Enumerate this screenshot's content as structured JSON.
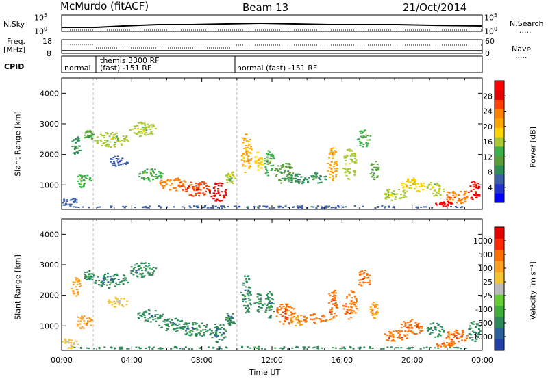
{
  "header": {
    "station": "McMurdo (fitACF)",
    "beam": "Beam 13",
    "date": "21/Oct/2014"
  },
  "side_labels": {
    "nsky": "N.Sky",
    "freq": "Freq.",
    "freq_unit": "[MHz]",
    "cpid": "CPID",
    "nsearch": "N.Search",
    "nave": "Nave",
    "dots": "....."
  },
  "noise_panel": {
    "left_ticks": [
      "10^5",
      "10^0"
    ],
    "right_ticks": [
      "10^5",
      "10^0"
    ]
  },
  "freq_panel": {
    "left_ticks": [
      "18",
      "8"
    ],
    "right_ticks": [
      "60",
      "0"
    ]
  },
  "cpid_panel": {
    "segments": [
      {
        "label": "normal",
        "start": 0.0
      },
      {
        "label": "themis 3300 RF",
        "label2": "(fast) -151 RF",
        "start": 1.8
      },
      {
        "label": "normal (fast) -151 RF",
        "start": 10.0
      }
    ]
  },
  "colors": {
    "white_bg": "#ffffff",
    "grid": "#bbbbbb"
  },
  "chart_data": [
    {
      "type": "heatmap",
      "panel": "power",
      "ylabel": "Slant Range [km]",
      "yticks": [
        "4000",
        "3000",
        "2000",
        "1000"
      ],
      "ylim": [
        200,
        4500
      ],
      "xlim": [
        0,
        24
      ],
      "colorbar_label": "Power [dB]",
      "colorbar_ticks": [
        "28",
        "24",
        "20",
        "16",
        "12",
        "8",
        "4"
      ],
      "colorbar_colors": [
        "#0000ff",
        "#2233cc",
        "#3a5ea8",
        "#2f8f5a",
        "#5a9e3c",
        "#3cb04a",
        "#a8c832",
        "#ffd400",
        "#ffa500",
        "#ff7f00",
        "#ff4000",
        "#e60000",
        "#ff0000"
      ],
      "blobs": [
        {
          "x": 0.4,
          "y": 450,
          "w": 1.0,
          "h": 350,
          "level": 2
        },
        {
          "x": 0.8,
          "y": 2300,
          "w": 0.6,
          "h": 600,
          "level": 3
        },
        {
          "x": 1.2,
          "y": 1150,
          "w": 1.0,
          "h": 450,
          "level": 5
        },
        {
          "x": 1.5,
          "y": 2650,
          "w": 0.6,
          "h": 350,
          "level": 4
        },
        {
          "x": 2.8,
          "y": 2500,
          "w": 2.0,
          "h": 500,
          "level": 6
        },
        {
          "x": 4.6,
          "y": 2850,
          "w": 1.5,
          "h": 500,
          "level": 6
        },
        {
          "x": 3.2,
          "y": 1800,
          "w": 1.2,
          "h": 350,
          "level": 2
        },
        {
          "x": 5.0,
          "y": 1350,
          "w": 1.5,
          "h": 400,
          "level": 5
        },
        {
          "x": 6.3,
          "y": 1050,
          "w": 1.6,
          "h": 450,
          "level": 9
        },
        {
          "x": 7.6,
          "y": 900,
          "w": 1.8,
          "h": 500,
          "level": 10
        },
        {
          "x": 8.9,
          "y": 800,
          "w": 1.0,
          "h": 650,
          "level": 11
        },
        {
          "x": 9.6,
          "y": 1250,
          "w": 0.6,
          "h": 450,
          "level": 6
        },
        {
          "x": 10.5,
          "y": 2050,
          "w": 0.6,
          "h": 1300,
          "level": 8
        },
        {
          "x": 11.2,
          "y": 1800,
          "w": 0.5,
          "h": 700,
          "level": 7
        },
        {
          "x": 11.8,
          "y": 1700,
          "w": 0.6,
          "h": 900,
          "level": 5
        },
        {
          "x": 12.7,
          "y": 1400,
          "w": 1.2,
          "h": 700,
          "level": 4
        },
        {
          "x": 13.4,
          "y": 1200,
          "w": 1.0,
          "h": 350,
          "level": 3
        },
        {
          "x": 14.4,
          "y": 1250,
          "w": 1.4,
          "h": 350,
          "level": 3
        },
        {
          "x": 15.4,
          "y": 1700,
          "w": 0.6,
          "h": 1100,
          "level": 8
        },
        {
          "x": 16.4,
          "y": 1700,
          "w": 0.8,
          "h": 1000,
          "level": 6
        },
        {
          "x": 17.2,
          "y": 2550,
          "w": 0.8,
          "h": 600,
          "level": 5
        },
        {
          "x": 17.8,
          "y": 1500,
          "w": 0.5,
          "h": 600,
          "level": 4
        },
        {
          "x": 19.0,
          "y": 700,
          "w": 1.5,
          "h": 400,
          "level": 6
        },
        {
          "x": 20.0,
          "y": 1000,
          "w": 1.4,
          "h": 500,
          "level": 7
        },
        {
          "x": 21.3,
          "y": 900,
          "w": 1.0,
          "h": 500,
          "level": 6
        },
        {
          "x": 22.5,
          "y": 650,
          "w": 1.4,
          "h": 500,
          "level": 9
        },
        {
          "x": 23.5,
          "y": 850,
          "w": 0.7,
          "h": 700,
          "level": 11
        },
        {
          "x": 21.8,
          "y": 400,
          "w": 1.0,
          "h": 150,
          "level": 12
        },
        {
          "x": 12.0,
          "y": 300,
          "w": 24.0,
          "h": 80,
          "level": 2
        }
      ]
    },
    {
      "type": "heatmap",
      "panel": "velocity",
      "ylabel": "Slant Range [km]",
      "yticks": [
        "4000",
        "3000",
        "2000",
        "1000"
      ],
      "ylim": [
        200,
        4500
      ],
      "xlim": [
        0,
        24
      ],
      "xticks": [
        "00:00",
        "04:00",
        "08:00",
        "12:00",
        "16:00",
        "20:00",
        "00:00"
      ],
      "xlabel": "Time UT",
      "colorbar_label": "Velocity [m s⁻¹]",
      "colorbar_ticks": [
        "1000",
        "500",
        "100",
        "25",
        "-25",
        "-100",
        "-500",
        "-1000"
      ],
      "colorbar_colors": [
        "#1f3ea8",
        "#2a5f9c",
        "#2f8a5a",
        "#3fae3a",
        "#66cc33",
        "#bbbbbb",
        "#f4c430",
        "#ffa020",
        "#ff7000",
        "#ff2a00",
        "#e60000"
      ],
      "blobs": [
        {
          "x": 0.4,
          "y": 450,
          "w": 1.0,
          "h": 350,
          "level": 6
        },
        {
          "x": 0.8,
          "y": 2300,
          "w": 0.6,
          "h": 600,
          "level": 7
        },
        {
          "x": 1.2,
          "y": 1150,
          "w": 1.0,
          "h": 450,
          "level": 7
        },
        {
          "x": 1.5,
          "y": 2650,
          "w": 0.6,
          "h": 350,
          "level": 2
        },
        {
          "x": 2.8,
          "y": 2500,
          "w": 2.0,
          "h": 500,
          "level": 2
        },
        {
          "x": 4.6,
          "y": 2850,
          "w": 1.5,
          "h": 500,
          "level": 2
        },
        {
          "x": 3.2,
          "y": 1800,
          "w": 1.2,
          "h": 350,
          "level": 6
        },
        {
          "x": 5.0,
          "y": 1350,
          "w": 1.5,
          "h": 400,
          "level": 2
        },
        {
          "x": 6.3,
          "y": 1050,
          "w": 1.6,
          "h": 450,
          "level": 2
        },
        {
          "x": 7.6,
          "y": 900,
          "w": 1.8,
          "h": 500,
          "level": 2
        },
        {
          "x": 8.9,
          "y": 800,
          "w": 1.0,
          "h": 650,
          "level": 2
        },
        {
          "x": 9.6,
          "y": 1250,
          "w": 0.6,
          "h": 450,
          "level": 2
        },
        {
          "x": 10.5,
          "y": 2050,
          "w": 0.6,
          "h": 1300,
          "level": 2
        },
        {
          "x": 11.2,
          "y": 1800,
          "w": 0.5,
          "h": 700,
          "level": 2
        },
        {
          "x": 11.8,
          "y": 1700,
          "w": 0.6,
          "h": 900,
          "level": 2
        },
        {
          "x": 12.7,
          "y": 1400,
          "w": 1.2,
          "h": 700,
          "level": 8
        },
        {
          "x": 13.4,
          "y": 1200,
          "w": 1.0,
          "h": 350,
          "level": 7
        },
        {
          "x": 14.4,
          "y": 1250,
          "w": 1.4,
          "h": 350,
          "level": 8
        },
        {
          "x": 15.4,
          "y": 1700,
          "w": 0.6,
          "h": 1100,
          "level": 8
        },
        {
          "x": 16.4,
          "y": 1700,
          "w": 0.8,
          "h": 1000,
          "level": 8
        },
        {
          "x": 17.2,
          "y": 2550,
          "w": 0.8,
          "h": 600,
          "level": 8
        },
        {
          "x": 17.8,
          "y": 1500,
          "w": 0.5,
          "h": 600,
          "level": 7
        },
        {
          "x": 19.0,
          "y": 700,
          "w": 1.5,
          "h": 400,
          "level": 8
        },
        {
          "x": 20.0,
          "y": 1000,
          "w": 1.4,
          "h": 500,
          "level": 8
        },
        {
          "x": 21.3,
          "y": 900,
          "w": 1.0,
          "h": 500,
          "level": 2
        },
        {
          "x": 22.5,
          "y": 650,
          "w": 1.4,
          "h": 500,
          "level": 8
        },
        {
          "x": 23.5,
          "y": 850,
          "w": 0.7,
          "h": 700,
          "level": 2
        },
        {
          "x": 21.8,
          "y": 400,
          "w": 1.0,
          "h": 150,
          "level": 8
        },
        {
          "x": 12.0,
          "y": 300,
          "w": 24.0,
          "h": 80,
          "level": 2
        }
      ]
    }
  ]
}
